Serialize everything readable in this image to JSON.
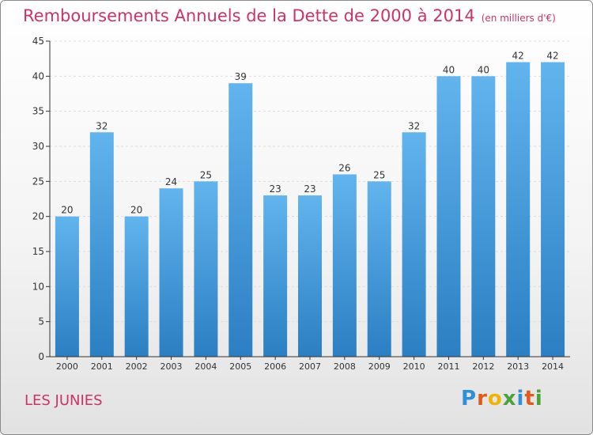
{
  "title": "Remboursements Annuels de la Dette de 2000 à 2014",
  "unit": "(en milliers d'€)",
  "commune": "LES JUNIES",
  "logo": {
    "letters": [
      "P",
      "r",
      "o",
      "x",
      "i",
      "t",
      "i"
    ],
    "colors": [
      "#2f8fd8",
      "#e05a1a",
      "#f0b400",
      "#4aa33a",
      "#2f8fd8",
      "#e05a1a",
      "#4aa33a"
    ]
  },
  "colors": {
    "title": "#cc3366",
    "bar_top": "#62b4ee",
    "bar_bottom": "#2b7fc2",
    "axis": "#333333",
    "grid": "#dddddd"
  },
  "chart_data": {
    "type": "bar",
    "categories": [
      "2000",
      "2001",
      "2002",
      "2003",
      "2004",
      "2005",
      "2006",
      "2007",
      "2008",
      "2009",
      "2010",
      "2011",
      "2012",
      "2013",
      "2014"
    ],
    "values": [
      20,
      32,
      20,
      24,
      25,
      39,
      23,
      23,
      26,
      25,
      32,
      40,
      40,
      42,
      42
    ],
    "ylim": [
      0,
      45
    ],
    "yticks": [
      0,
      5,
      10,
      15,
      20,
      25,
      30,
      35,
      40,
      45
    ],
    "grid": "horizontal dashed",
    "data_labels": true
  }
}
